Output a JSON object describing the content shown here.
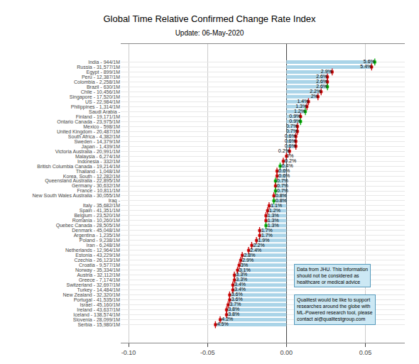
{
  "chart_data": {
    "type": "bar",
    "orientation": "horizontal",
    "title": "Global Time Relative Confirmed Change Rate Index",
    "subtitle": "Update: 06-May-2020",
    "categories": [
      "India - 944/1M",
      "Russia - 31,577/1M",
      "Egypt - 899/1M",
      "Peru - 12,387/1M",
      "Colombia - 2,258/1M",
      "Brazil - 630/1M",
      "Chile - 10,456/1M",
      "Singapore - 17,520/1M",
      "US - 22,984/1M",
      "Philippines - 1,314/1M",
      "Saudi Arabia -",
      "Finland - 19,171/1M",
      "Ontario Canada - 23,975/1M",
      "Mexico - 598/1M",
      "United Kingdom - 20,487/1M",
      "South Africa - 4,382/1M",
      "Sweden - 14,379/1M",
      "Japan - 1,439/1M",
      "Victoria Australia - 20,991/1M",
      "Malaysia - 6,274/1M",
      "Indonesia - 332/1M",
      "British Columbia Canada - 19,214/1M",
      "Thailand - 1,048/1M",
      "Korea, South - 12,282/1M",
      "Queensland Australia - 22,895/1M",
      "Germany - 30,632/1M",
      "France - 10,811/1M",
      "New South Wales Australia - 30,055/1M",
      "Iraq -",
      "Italy - 35,682/1M",
      "Spain - 41,351/1M",
      "Belgium - 23,520/1M",
      "Romania - 10,260/1M",
      "Quebec Canada - 28,505/1M",
      "Denmark - 45,048/1M",
      "Argentina - 1,235/1M",
      "Poland - 9,238/1M",
      "Iran - 6,248/1M",
      "Netherlands - 12,964/1M",
      "Estonia - 43,229/1M",
      "Czechia - 26,123/1M",
      "Croatia - 9,577/1M",
      "Norway - 35,334/1M",
      "Austria - 32,112/1M",
      "Greece - 7,174/1M",
      "Switzerland - 32,697/1M",
      "Turkey - 14,484/1M",
      "New Zealand - 32,320/1M",
      "Portugal - 41,535/1M",
      "Israel - 45,160/1M",
      "Ireland - 43,637/1M",
      "Iceland - 138,574/1M",
      "Slovenia - 28,099/1M",
      "Serbia - 15,980/1M"
    ],
    "values": [
      0.056,
      0.054,
      0.029,
      0.026,
      0.026,
      0.026,
      0.022,
      0.02,
      0.014,
      0.013,
      0.012,
      0.009,
      0.009,
      0.007,
      0.007,
      0.006,
      0.006,
      0.006,
      0.002,
      0.0,
      -0.002,
      -0.004,
      -0.006,
      -0.006,
      -0.007,
      -0.007,
      -0.007,
      -0.008,
      -0.008,
      -0.011,
      -0.012,
      -0.013,
      -0.013,
      -0.013,
      -0.017,
      -0.017,
      -0.019,
      -0.022,
      -0.024,
      -0.028,
      -0.029,
      -0.03,
      -0.031,
      -0.033,
      -0.033,
      -0.034,
      -0.034,
      -0.036,
      -0.036,
      -0.037,
      -0.038,
      -0.038,
      -0.042,
      -0.045
    ],
    "value_labels": [
      "5.6%",
      "5.4%",
      "2.9%",
      "2.6%",
      "2.6%",
      "2.6%",
      "2.2%",
      "2%",
      "1.4%",
      "1.3%",
      "1.2%",
      "0.9%",
      "0.9%",
      "0.7%",
      "0.7%",
      "0.6%",
      "0.6%",
      "0.6%",
      "0.2%",
      "0%",
      "-0.2%",
      "-0.4%",
      "-0.6%",
      "-0.6%",
      "-0.7%",
      "-0.7%",
      "-0.7%",
      "-0.8%",
      "-0.8%",
      "-1.1%",
      "-1.2%",
      "-1.3%",
      "-1.3%",
      "-1.3%",
      "-1.7%",
      "-1.7%",
      "-1.9%",
      "-2.2%",
      "-2.4%",
      "-2.8%",
      "-2.9%",
      "-3%",
      "-3.1%",
      "-3.3%",
      "-3.3%",
      "-3.4%",
      "-3.4%",
      "-3.6%",
      "-3.6%",
      "-3.7%",
      "-3.8%",
      "-3.8%",
      "-4.2%",
      "-4.5%"
    ],
    "data_labels": true,
    "color": "#aad4e8",
    "colors": [
      "#00aa00",
      "#cc0000",
      "#cc0000",
      "#cc0000",
      "#cc0000",
      "#00aa00",
      "#cc0000",
      "#cc0000",
      "#cc0000",
      "#cc0000",
      "#00aa00",
      "#cc0000",
      "#00aa00",
      "#cc0000",
      "#cc0000",
      "#cc0000",
      "#cc0000",
      "#cc0000",
      "#cc0000",
      "#cc0000",
      "#cc0000",
      "#00aa00",
      "#cc0000",
      "#cc0000",
      "#00aa00",
      "#cc0000",
      "#00aa00",
      "#cc0000",
      "#00aa00",
      "#cc0000",
      "#cc0000",
      "#cc0000",
      "#cc0000",
      "#00aa00",
      "#cc0000",
      "#cc0000",
      "#cc0000",
      "#cc0000",
      "#cc0000",
      "#cc0000",
      "#cc0000",
      "#cc0000",
      "#cc0000",
      "#cc0000",
      "#cc0000",
      "#cc0000",
      "#cc0000",
      "#cc0000",
      "#cc0000",
      "#cc0000",
      "#cc0000",
      "#cc0000",
      "#cc0000",
      "#cc0000"
    ],
    "annotations": [
      "Data from JHU. This Information\nshould not be considered as\nhealthcare or medical advice",
      "Qualitest would be like to support\nresearches around the globe with\nML-Powered research tool, please\ncontact ai@qualitestgroup.com"
    ],
    "xlim": [
      -0.105,
      0.075
    ],
    "xticks": [
      {
        "value": -0.1,
        "label": "-0.10"
      },
      {
        "value": -0.05,
        "label": "-0.05"
      },
      {
        "value": 0,
        "label": "0.00"
      },
      {
        "value": 0.05,
        "label": "0.05"
      }
    ],
    "grid": true
  }
}
